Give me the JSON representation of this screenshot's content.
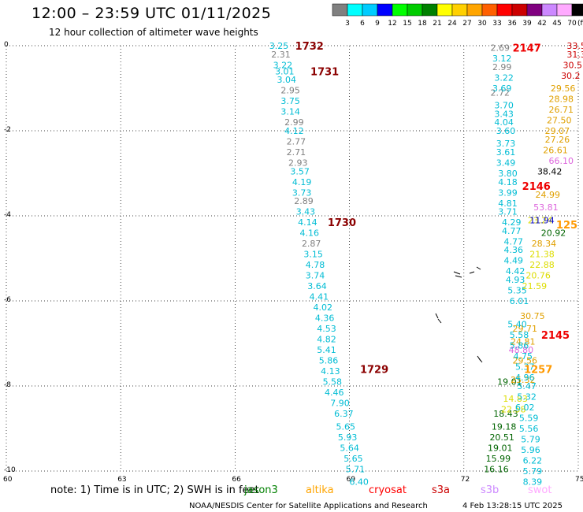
{
  "header": {
    "title": "12:00 – 23:59 UTC 01/11/2025",
    "subtitle": "12 hour collection of altimeter wave heights"
  },
  "colorbar": {
    "labels": [
      "3",
      "6",
      "9",
      "12",
      "15",
      "18",
      "21",
      "24",
      "27",
      "30",
      "33",
      "36",
      "39",
      "42",
      "45",
      "70"
    ],
    "unit": "(ft)",
    "colors": [
      "#808080",
      "#00ffff",
      "#00ccff",
      "#0000ff",
      "#00ff00",
      "#00cc00",
      "#008000",
      "#ffff00",
      "#ffd000",
      "#ffa500",
      "#ff6000",
      "#ff0000",
      "#cc0000",
      "#800080",
      "#cc88ff",
      "#ffaaff",
      "#000000"
    ]
  },
  "footer": {
    "note": "note:  1) Time is in UTC; 2) SWH is in feet",
    "credit": "NOAA/NESDIS Center for Satellite Applications and Research",
    "timestamp": "4 Feb 13:28:15 UTC 2025",
    "legend": [
      {
        "name": "jason3",
        "color": "#008000"
      },
      {
        "name": "altika",
        "color": "#ffa500"
      },
      {
        "name": "cryosat",
        "color": "#ff0000"
      },
      {
        "name": "s3a",
        "color": "#cc0000"
      },
      {
        "name": "s3b",
        "color": "#cc88ff"
      },
      {
        "name": "swot",
        "color": "#ffaaff"
      }
    ]
  },
  "chart_data": {
    "type": "scatter",
    "xlim": [
      60,
      75
    ],
    "ylim": [
      -10,
      0
    ],
    "x_ticks": [
      "60",
      "63",
      "66",
      "69",
      "72",
      "75"
    ],
    "y_ticks": [
      "0",
      "-2",
      "-4",
      "-6",
      "-8",
      "-10"
    ],
    "grid": true,
    "time_labels": [
      {
        "text": "1732",
        "lon": 67.95,
        "lat": 0.0
      },
      {
        "text": "1731",
        "lon": 68.35,
        "lat": -0.6
      },
      {
        "text": "1730",
        "lon": 68.8,
        "lat": -4.15
      },
      {
        "text": "1729",
        "lon": 69.65,
        "lat": -7.6
      },
      {
        "text": "2147",
        "lon": 73.65,
        "lat": -0.05
      },
      {
        "text": "2146",
        "lon": 73.9,
        "lat": -3.3
      },
      {
        "text": "2145",
        "lon": 74.4,
        "lat": -6.8
      },
      {
        "text": "1257",
        "lon": 73.95,
        "lat": -7.6
      },
      {
        "text": "125",
        "lon": 74.7,
        "lat": -4.2
      }
    ],
    "series": [
      {
        "color": "#006400",
        "points": [
          {
            "lon": 74.35,
            "lat": -4.4,
            "v": "20.92"
          },
          {
            "lon": 73.2,
            "lat": -7.9,
            "v": "19.01"
          },
          {
            "lon": 73.1,
            "lat": -8.65,
            "v": "18.43"
          },
          {
            "lon": 73.05,
            "lat": -8.95,
            "v": "19.18"
          },
          {
            "lon": 73.0,
            "lat": -9.2,
            "v": "20.51"
          },
          {
            "lon": 72.95,
            "lat": -9.45,
            "v": "19.01"
          },
          {
            "lon": 72.9,
            "lat": -9.7,
            "v": "15.99"
          },
          {
            "lon": 72.85,
            "lat": -9.95,
            "v": "16.16"
          }
        ]
      },
      {
        "color": "#e0a000",
        "points": [
          {
            "lon": 74.6,
            "lat": -1.0,
            "v": "29.56"
          },
          {
            "lon": 74.55,
            "lat": -1.25,
            "v": "28.98"
          },
          {
            "lon": 74.55,
            "lat": -1.5,
            "v": "26.71"
          },
          {
            "lon": 74.5,
            "lat": -1.75,
            "v": "27.50"
          },
          {
            "lon": 74.45,
            "lat": -2.0,
            "v": "29.07"
          },
          {
            "lon": 74.45,
            "lat": -2.2,
            "v": "27.26"
          },
          {
            "lon": 74.4,
            "lat": -2.45,
            "v": "26.61"
          },
          {
            "lon": 74.2,
            "lat": -3.5,
            "v": "24.99"
          },
          {
            "lon": 74.1,
            "lat": -4.65,
            "v": "28.34"
          },
          {
            "lon": 73.8,
            "lat": -6.35,
            "v": "30.75"
          },
          {
            "lon": 73.6,
            "lat": -6.65,
            "v": "29.71"
          },
          {
            "lon": 73.55,
            "lat": -6.95,
            "v": "24.81"
          },
          {
            "lon": 73.6,
            "lat": -7.4,
            "v": "29.56"
          },
          {
            "lon": 73.55,
            "lat": -7.85,
            "v": "25.32"
          }
        ]
      },
      {
        "color": "#dddd00",
        "points": [
          {
            "lon": 74.0,
            "lat": -4.1,
            "v": "23.24"
          },
          {
            "lon": 74.05,
            "lat": -4.9,
            "v": "21.38"
          },
          {
            "lon": 74.05,
            "lat": -5.15,
            "v": "22.88"
          },
          {
            "lon": 73.95,
            "lat": -5.4,
            "v": "20.76"
          },
          {
            "lon": 73.85,
            "lat": -5.65,
            "v": "21.59"
          },
          {
            "lon": 73.35,
            "lat": -8.3,
            "v": "14.83"
          },
          {
            "lon": 73.3,
            "lat": -8.55,
            "v": "22.58"
          }
        ]
      },
      {
        "color": "#cc0000",
        "points": [
          {
            "lon": 74.95,
            "lat": 0.0,
            "v": "33.5"
          },
          {
            "lon": 74.95,
            "lat": -0.2,
            "v": "31.3"
          },
          {
            "lon": 74.85,
            "lat": -0.45,
            "v": "30.5"
          },
          {
            "lon": 74.8,
            "lat": -0.7,
            "v": "30.2"
          }
        ]
      },
      {
        "color": "#000000",
        "points": [
          {
            "lon": 74.25,
            "lat": -2.95,
            "v": "38.42"
          }
        ]
      },
      {
        "color": "#dd66dd",
        "points": [
          {
            "lon": 74.55,
            "lat": -2.7,
            "v": "66.10"
          },
          {
            "lon": 74.15,
            "lat": -3.8,
            "v": "53.81"
          },
          {
            "lon": 73.5,
            "lat": -7.15,
            "v": "48.80"
          }
        ]
      },
      {
        "color": "#0000cc",
        "points": [
          {
            "lon": 74.05,
            "lat": -4.1,
            "v": "11.94"
          }
        ]
      },
      {
        "color": "#808080",
        "points": [
          {
            "lon": 67.2,
            "lat": -0.2,
            "v": "2.31"
          },
          {
            "lon": 72.95,
            "lat": -0.05,
            "v": "2.69"
          },
          {
            "lon": 73.0,
            "lat": -0.5,
            "v": "2.99"
          },
          {
            "lon": 67.45,
            "lat": -1.05,
            "v": "2.95"
          },
          {
            "lon": 72.95,
            "lat": -1.1,
            "v": "2.72"
          },
          {
            "lon": 67.55,
            "lat": -1.8,
            "v": "2.99"
          },
          {
            "lon": 67.6,
            "lat": -2.25,
            "v": "2.77"
          },
          {
            "lon": 67.6,
            "lat": -2.5,
            "v": "2.71"
          },
          {
            "lon": 67.65,
            "lat": -2.75,
            "v": "2.93"
          },
          {
            "lon": 67.8,
            "lat": -3.65,
            "v": "2.89"
          },
          {
            "lon": 68.0,
            "lat": -4.65,
            "v": "2.87"
          }
        ]
      },
      {
        "color": "#00bcd4",
        "points": [
          {
            "lon": 67.15,
            "lat": 0.0,
            "v": "3.25"
          },
          {
            "lon": 67.25,
            "lat": -0.45,
            "v": "3.22"
          },
          {
            "lon": 67.3,
            "lat": -0.6,
            "v": "3.01"
          },
          {
            "lon": 67.35,
            "lat": -0.8,
            "v": "3.04"
          },
          {
            "lon": 67.45,
            "lat": -1.3,
            "v": "3.75"
          },
          {
            "lon": 67.45,
            "lat": -1.55,
            "v": "3.14"
          },
          {
            "lon": 67.55,
            "lat": -2.0,
            "v": "4.12"
          },
          {
            "lon": 67.7,
            "lat": -2.95,
            "v": "3.57"
          },
          {
            "lon": 67.75,
            "lat": -3.2,
            "v": "4.19"
          },
          {
            "lon": 67.75,
            "lat": -3.45,
            "v": "3.73"
          },
          {
            "lon": 67.85,
            "lat": -3.9,
            "v": "3.43"
          },
          {
            "lon": 67.9,
            "lat": -4.15,
            "v": "4.14"
          },
          {
            "lon": 67.95,
            "lat": -4.4,
            "v": "4.16"
          },
          {
            "lon": 68.05,
            "lat": -4.9,
            "v": "3.15"
          },
          {
            "lon": 68.1,
            "lat": -5.15,
            "v": "4.78"
          },
          {
            "lon": 68.1,
            "lat": -5.4,
            "v": "3.74"
          },
          {
            "lon": 68.15,
            "lat": -5.65,
            "v": "3.64"
          },
          {
            "lon": 68.2,
            "lat": -5.9,
            "v": "4.41"
          },
          {
            "lon": 68.3,
            "lat": -6.15,
            "v": "4.02"
          },
          {
            "lon": 68.35,
            "lat": -6.4,
            "v": "4.36"
          },
          {
            "lon": 68.4,
            "lat": -6.65,
            "v": "4.53"
          },
          {
            "lon": 68.4,
            "lat": -6.9,
            "v": "4.82"
          },
          {
            "lon": 68.4,
            "lat": -7.15,
            "v": "5.41"
          },
          {
            "lon": 68.45,
            "lat": -7.4,
            "v": "5.86"
          },
          {
            "lon": 68.5,
            "lat": -7.65,
            "v": "4.13"
          },
          {
            "lon": 68.55,
            "lat": -7.9,
            "v": "5.58"
          },
          {
            "lon": 68.6,
            "lat": -8.15,
            "v": "4.46"
          },
          {
            "lon": 68.75,
            "lat": -8.4,
            "v": "7.90"
          },
          {
            "lon": 68.85,
            "lat": -8.65,
            "v": "6.37"
          },
          {
            "lon": 68.9,
            "lat": -8.95,
            "v": "5.65"
          },
          {
            "lon": 68.95,
            "lat": -9.2,
            "v": "5.93"
          },
          {
            "lon": 69.0,
            "lat": -9.45,
            "v": "5.64"
          },
          {
            "lon": 69.1,
            "lat": -9.7,
            "v": "5.65"
          },
          {
            "lon": 69.15,
            "lat": -9.95,
            "v": "5.71"
          },
          {
            "lon": 69.25,
            "lat": -10.25,
            "v": "6.40"
          },
          {
            "lon": 73.0,
            "lat": -0.3,
            "v": "3.12"
          },
          {
            "lon": 73.05,
            "lat": -0.75,
            "v": "3.22"
          },
          {
            "lon": 73.0,
            "lat": -1.0,
            "v": "3.69"
          },
          {
            "lon": 73.05,
            "lat": -1.4,
            "v": "3.70"
          },
          {
            "lon": 73.05,
            "lat": -1.6,
            "v": "3.43"
          },
          {
            "lon": 73.05,
            "lat": -1.8,
            "v": "4.04"
          },
          {
            "lon": 73.1,
            "lat": -2.0,
            "v": "3.60"
          },
          {
            "lon": 73.1,
            "lat": -2.3,
            "v": "3.73"
          },
          {
            "lon": 73.1,
            "lat": -2.5,
            "v": "3.61"
          },
          {
            "lon": 73.1,
            "lat": -2.75,
            "v": "3.49"
          },
          {
            "lon": 73.15,
            "lat": -3.0,
            "v": "3.80"
          },
          {
            "lon": 73.15,
            "lat": -3.2,
            "v": "4.18"
          },
          {
            "lon": 73.15,
            "lat": -3.45,
            "v": "3.99"
          },
          {
            "lon": 73.15,
            "lat": -3.7,
            "v": "4.81"
          },
          {
            "lon": 73.15,
            "lat": -3.9,
            "v": "3.71"
          },
          {
            "lon": 73.25,
            "lat": -4.15,
            "v": "4.29"
          },
          {
            "lon": 73.25,
            "lat": -4.35,
            "v": "4.77"
          },
          {
            "lon": 73.3,
            "lat": -4.6,
            "v": "4.77"
          },
          {
            "lon": 73.3,
            "lat": -4.8,
            "v": "4.36"
          },
          {
            "lon": 73.3,
            "lat": -5.05,
            "v": "4.49"
          },
          {
            "lon": 73.35,
            "lat": -5.3,
            "v": "4.42"
          },
          {
            "lon": 73.35,
            "lat": -5.5,
            "v": "4.93"
          },
          {
            "lon": 73.4,
            "lat": -5.75,
            "v": "5.35"
          },
          {
            "lon": 73.45,
            "lat": -6.0,
            "v": "6.01"
          },
          {
            "lon": 73.4,
            "lat": -6.55,
            "v": "5.40"
          },
          {
            "lon": 73.45,
            "lat": -6.8,
            "v": "5.58"
          },
          {
            "lon": 73.45,
            "lat": -7.05,
            "v": "5.86"
          },
          {
            "lon": 73.55,
            "lat": -7.3,
            "v": "4.75"
          },
          {
            "lon": 73.6,
            "lat": -7.55,
            "v": "5.37"
          },
          {
            "lon": 73.6,
            "lat": -7.8,
            "v": "4.96"
          },
          {
            "lon": 73.65,
            "lat": -8.0,
            "v": "5.47"
          },
          {
            "lon": 73.65,
            "lat": -8.25,
            "v": "5.32"
          },
          {
            "lon": 73.6,
            "lat": -8.5,
            "v": "6.02"
          },
          {
            "lon": 73.7,
            "lat": -8.75,
            "v": "5.59"
          },
          {
            "lon": 73.7,
            "lat": -9.0,
            "v": "5.56"
          },
          {
            "lon": 73.75,
            "lat": -9.25,
            "v": "5.79"
          },
          {
            "lon": 73.75,
            "lat": -9.5,
            "v": "5.96"
          },
          {
            "lon": 73.8,
            "lat": -9.75,
            "v": "6.22"
          },
          {
            "lon": 73.8,
            "lat": -10.0,
            "v": "5.79"
          },
          {
            "lon": 73.8,
            "lat": -10.25,
            "v": "8.39"
          }
        ]
      }
    ]
  }
}
